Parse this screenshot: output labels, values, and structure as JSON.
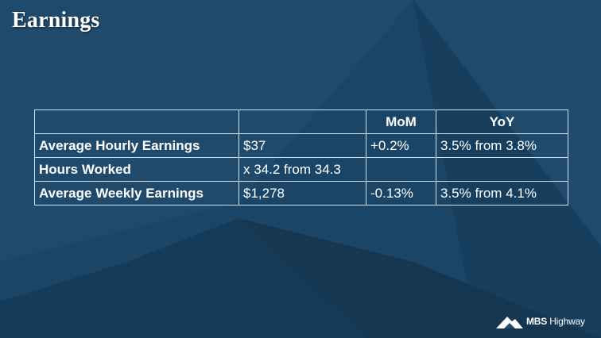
{
  "slide": {
    "title": "Earnings"
  },
  "table": {
    "headers": [
      "",
      "",
      "MoM",
      "YoY"
    ],
    "rows": [
      {
        "label": "Average Hourly Earnings",
        "value": "$37",
        "mom": "+0.2%",
        "yoy": "3.5% from 3.8%"
      },
      {
        "label": "Hours Worked",
        "value": "x 34.2 from 34.3",
        "mom": "",
        "yoy": ""
      },
      {
        "label": "Average Weekly Earnings",
        "value": "$1,278",
        "mom": "-0.13%",
        "yoy": "3.5% from 4.1%"
      }
    ]
  },
  "logo": {
    "brand": "MBS",
    "name": "Highway",
    "mark": "mountain-logo-icon"
  },
  "colors": {
    "background": "#1f4a6b",
    "text": "#ffffff",
    "border": "#d5e0ea"
  }
}
